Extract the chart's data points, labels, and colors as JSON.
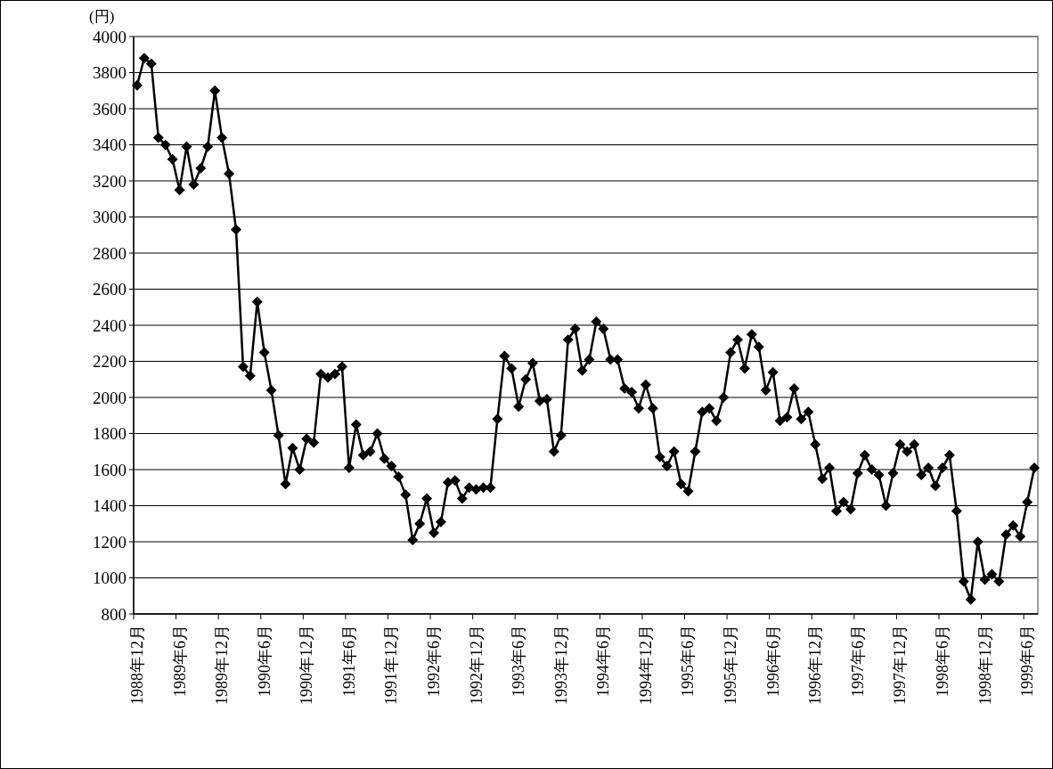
{
  "chart_data": {
    "type": "line",
    "ylabel": "(円)",
    "categories": [
      "1988年12月",
      null,
      null,
      null,
      null,
      null,
      "1989年6月",
      null,
      null,
      null,
      null,
      null,
      "1989年12月",
      null,
      null,
      null,
      null,
      null,
      "1990年6月",
      null,
      null,
      null,
      null,
      null,
      "1990年12月",
      null,
      null,
      null,
      null,
      null,
      "1991年6月",
      null,
      null,
      null,
      null,
      null,
      "1991年12月",
      null,
      null,
      null,
      null,
      null,
      "1992年6月",
      null,
      null,
      null,
      null,
      null,
      "1992年12月",
      null,
      null,
      null,
      null,
      null,
      "1993年6月",
      null,
      null,
      null,
      null,
      null,
      "1993年12月",
      null,
      null,
      null,
      null,
      null,
      "1994年6月",
      null,
      null,
      null,
      null,
      null,
      "1994年12月",
      null,
      null,
      null,
      null,
      null,
      "1995年6月",
      null,
      null,
      null,
      null,
      null,
      "1995年12月",
      null,
      null,
      null,
      null,
      null,
      "1996年6月",
      null,
      null,
      null,
      null,
      null,
      "1996年12月",
      null,
      null,
      null,
      null,
      null,
      "1997年6月",
      null,
      null,
      null,
      null,
      null,
      "1997年12月",
      null,
      null,
      null,
      null,
      null,
      "1998年6月",
      null,
      null,
      null,
      null,
      null,
      "1998年12月",
      null,
      null,
      null,
      null,
      null,
      "1999年6月",
      null
    ],
    "series": [
      {
        "color": "#000000",
        "values": [
          3730,
          3880,
          3850,
          3440,
          3400,
          3320,
          3150,
          3390,
          3180,
          3270,
          3390,
          3700,
          3440,
          3240,
          2930,
          2170,
          2120,
          2530,
          2250,
          2040,
          1790,
          1520,
          1720,
          1600,
          1770,
          1750,
          2130,
          2110,
          2130,
          2170,
          1610,
          1850,
          1680,
          1700,
          1800,
          1660,
          1620,
          1560,
          1460,
          1210,
          1300,
          1440,
          1250,
          1310,
          1530,
          1540,
          1440,
          1500,
          1490,
          1500,
          1500,
          1880,
          2230,
          2160,
          1950,
          2100,
          2190,
          1980,
          1990,
          1700,
          1790,
          2320,
          2380,
          2150,
          2210,
          2420,
          2380,
          2210,
          2210,
          2050,
          2030,
          1940,
          2070,
          1940,
          1670,
          1620,
          1700,
          1520,
          1480,
          1700,
          1920,
          1940,
          1870,
          2000,
          2250,
          2320,
          2160,
          2350,
          2280,
          2040,
          2140,
          1870,
          1890,
          2050,
          1880,
          1920,
          1740,
          1550,
          1610,
          1370,
          1420,
          1380,
          1580,
          1680,
          1600,
          1570,
          1400,
          1580,
          1740,
          1700,
          1740,
          1570,
          1610,
          1510,
          1610,
          1680,
          1370,
          980,
          880,
          1200,
          990,
          1020,
          980,
          1240,
          1290,
          1230,
          1420,
          1610
        ]
      }
    ],
    "ylim": [
      800,
      4000
    ],
    "yticks": [
      800,
      1000,
      1200,
      1400,
      1600,
      1800,
      2000,
      2200,
      2400,
      2600,
      2800,
      3000,
      3200,
      3400,
      3600,
      3800,
      4000
    ],
    "grid": "y",
    "marker": "diamond",
    "line_style": "solid"
  }
}
